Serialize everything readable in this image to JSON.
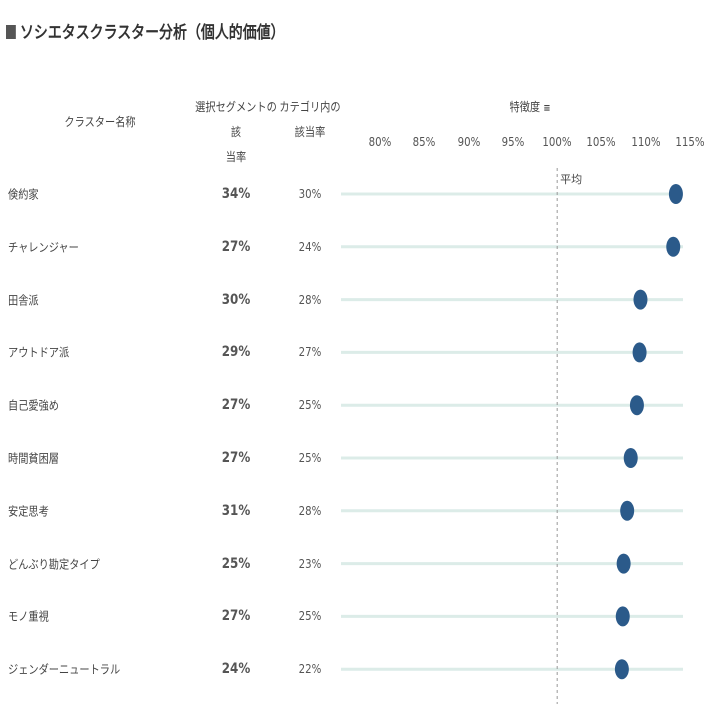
{
  "title": "ソシエタスクラスター分析（個人的価値）",
  "headers": {
    "name": "クラスター名称",
    "seg_line1": "選択セグメントの該",
    "seg_line2": "当率",
    "cat_line1": "カテゴリ内の",
    "cat_line2": "該当率",
    "score": "特徴度"
  },
  "chart_data": {
    "type": "scatter",
    "xlabel": "特徴度",
    "xlim": [
      75.6,
      114.2
    ],
    "ticks": [
      "80%",
      "85%",
      "90%",
      "95%",
      "100%",
      "105%",
      "110%",
      "115%"
    ],
    "tick_values": [
      80,
      85,
      90,
      95,
      100,
      105,
      110,
      115
    ],
    "reference": {
      "value": 100,
      "label": "平均"
    },
    "dot_color": "#2b5a8a",
    "track_color": "#dcece8",
    "rows": [
      {
        "name": "倹約家",
        "segment_rate": "34%",
        "category_rate": "30%",
        "score": 113.4
      },
      {
        "name": "チャレンジャー",
        "segment_rate": "27%",
        "category_rate": "24%",
        "score": 113.1
      },
      {
        "name": "田舎派",
        "segment_rate": "30%",
        "category_rate": "28%",
        "score": 109.4
      },
      {
        "name": "アウトドア派",
        "segment_rate": "29%",
        "category_rate": "27%",
        "score": 109.3
      },
      {
        "name": "自己愛強め",
        "segment_rate": "27%",
        "category_rate": "25%",
        "score": 109.0
      },
      {
        "name": "時間貧困層",
        "segment_rate": "27%",
        "category_rate": "25%",
        "score": 108.3
      },
      {
        "name": "安定思考",
        "segment_rate": "31%",
        "category_rate": "28%",
        "score": 107.9
      },
      {
        "name": "どんぶり勘定タイプ",
        "segment_rate": "25%",
        "category_rate": "23%",
        "score": 107.5
      },
      {
        "name": "モノ重視",
        "segment_rate": "27%",
        "category_rate": "25%",
        "score": 107.4
      },
      {
        "name": "ジェンダーニュートラル",
        "segment_rate": "24%",
        "category_rate": "22%",
        "score": 107.3
      }
    ]
  }
}
